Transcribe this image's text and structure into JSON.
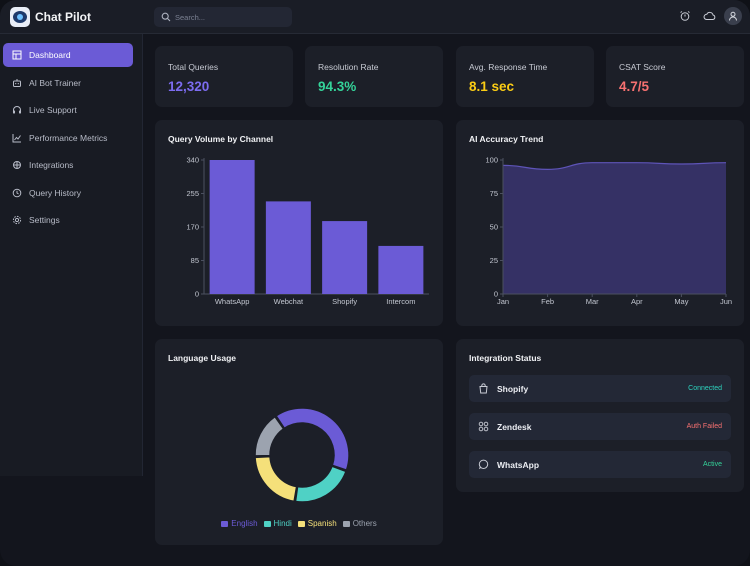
{
  "app": {
    "title": "Chat Pilot"
  },
  "search": {
    "placeholder": "Search..."
  },
  "sidebar": {
    "items": [
      {
        "label": "Dashboard",
        "icon": "dashboard-icon",
        "active": true
      },
      {
        "label": "AI Bot Trainer",
        "icon": "robot-icon",
        "active": false
      },
      {
        "label": "Live Support",
        "icon": "headset-icon",
        "active": false
      },
      {
        "label": "Performance Metrics",
        "icon": "chart-line-icon",
        "active": false
      },
      {
        "label": "Integrations",
        "icon": "plug-icon",
        "active": false
      },
      {
        "label": "Query History",
        "icon": "history-icon",
        "active": false
      },
      {
        "label": "Settings",
        "icon": "gear-icon",
        "active": false
      }
    ]
  },
  "stats": [
    {
      "label": "Total Queries",
      "value": "12,320",
      "color": "#7c6cf0"
    },
    {
      "label": "Resolution Rate",
      "value": "94.3%",
      "color": "#34d399"
    },
    {
      "label": "Avg. Response Time",
      "value": "8.1 sec",
      "color": "#facc15"
    },
    {
      "label": "CSAT Score",
      "value": "4.7/5",
      "color": "#f87171"
    }
  ],
  "query_volume": {
    "title": "Query Volume by Channel"
  },
  "accuracy": {
    "title": "AI Accuracy Trend"
  },
  "language": {
    "title": "Language Usage"
  },
  "integrations": {
    "title": "Integration Status",
    "items": [
      {
        "name": "Shopify",
        "status": "Connected",
        "status_color": "#2dd4bf",
        "icon": "shopify-bag-icon"
      },
      {
        "name": "Zendesk",
        "status": "Auth Failed",
        "status_color": "#f87171",
        "icon": "zendesk-grid-icon"
      },
      {
        "name": "WhatsApp",
        "status": "Active",
        "status_color": "#34d399",
        "icon": "whatsapp-icon"
      }
    ]
  },
  "colors": {
    "accent": "#6b5bd6",
    "bar": "#6b5bd6",
    "area_fill": "#3a3570",
    "area_stroke": "#5e54b8"
  },
  "chart_data": [
    {
      "type": "bar",
      "title": "Query Volume by Channel",
      "categories": [
        "WhatsApp",
        "Webchat",
        "Shopify",
        "Intercom"
      ],
      "values": [
        340,
        235,
        185,
        122
      ],
      "ylim": [
        0,
        340
      ],
      "yticks": [
        "0",
        "85",
        "170",
        "255",
        "340"
      ]
    },
    {
      "type": "area",
      "title": "AI Accuracy Trend",
      "x": [
        "Jan",
        "Feb",
        "Mar",
        "Apr",
        "May",
        "Jun"
      ],
      "values": [
        96,
        93,
        98,
        98,
        97,
        98
      ],
      "ylim": [
        0,
        100
      ],
      "yticks": [
        "0",
        "25",
        "50",
        "75",
        "100"
      ]
    },
    {
      "type": "pie",
      "title": "Language Usage",
      "categories": [
        "English",
        "Hindi",
        "Spanish",
        "Others"
      ],
      "values": [
        40,
        22,
        22,
        16
      ],
      "colors": [
        "#6b5bd6",
        "#4fd1c5",
        "#f5e07a",
        "#9ca3af"
      ]
    }
  ]
}
